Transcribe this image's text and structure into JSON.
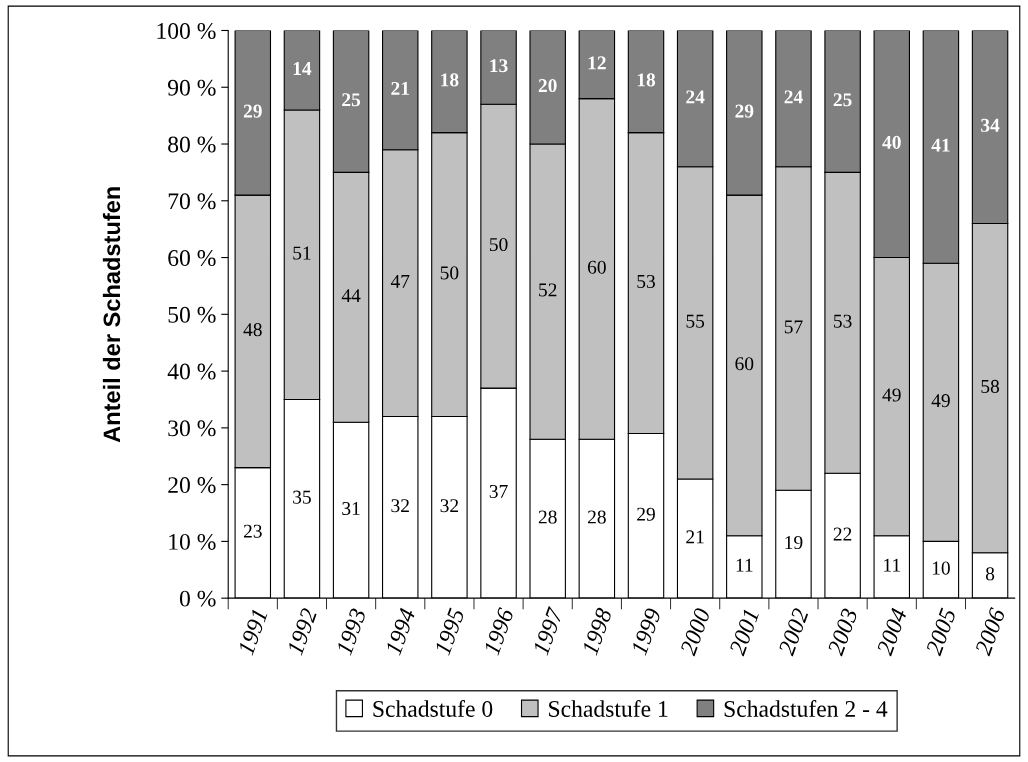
{
  "chart_data": {
    "type": "bar",
    "stacked": true,
    "ylabel": "Anteil der Schadstufen",
    "categories": [
      "1991",
      "1992",
      "1993",
      "1994",
      "1995",
      "1996",
      "1997",
      "1998",
      "1999",
      "2000",
      "2001",
      "2002",
      "2003",
      "2004",
      "2005",
      "2006"
    ],
    "series": [
      {
        "name": "Schadstufe 0",
        "color": "#ffffff",
        "values": [
          23,
          35,
          31,
          32,
          32,
          37,
          28,
          28,
          29,
          21,
          11,
          19,
          22,
          11,
          10,
          8
        ]
      },
      {
        "name": "Schadstufe 1",
        "color": "#c0c0c0",
        "values": [
          48,
          51,
          44,
          47,
          50,
          50,
          52,
          60,
          53,
          55,
          60,
          57,
          53,
          49,
          49,
          58
        ]
      },
      {
        "name": "Schadstufen 2 - 4",
        "color": "#808080",
        "values": [
          29,
          14,
          25,
          21,
          18,
          13,
          20,
          12,
          18,
          24,
          29,
          24,
          25,
          40,
          41,
          34
        ]
      }
    ],
    "ylim": [
      0,
      100
    ],
    "yticks": [
      {
        "value": 0,
        "label": "0 %"
      },
      {
        "value": 10,
        "label": "10 %"
      },
      {
        "value": 20,
        "label": "20 %"
      },
      {
        "value": 30,
        "label": "30 %"
      },
      {
        "value": 40,
        "label": "40 %"
      },
      {
        "value": 50,
        "label": "50 %"
      },
      {
        "value": 60,
        "label": "60 %"
      },
      {
        "value": 70,
        "label": "70 %"
      },
      {
        "value": 80,
        "label": "80 %"
      },
      {
        "value": 90,
        "label": "90 %"
      },
      {
        "value": 100,
        "label": "100 %"
      }
    ],
    "data_labels": true,
    "legend": "bottom",
    "grid": false
  }
}
